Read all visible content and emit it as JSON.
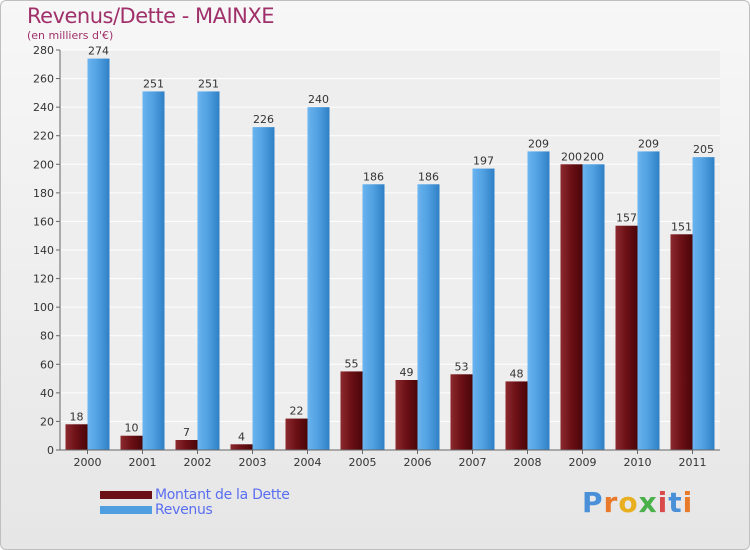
{
  "chart_data": {
    "type": "bar",
    "title": "Revenus/Dette - MAINXE",
    "subtitle": "(en milliers d'€)",
    "categories": [
      "2000",
      "2001",
      "2002",
      "2003",
      "2004",
      "2005",
      "2006",
      "2007",
      "2008",
      "2009",
      "2010",
      "2011"
    ],
    "series": [
      {
        "name": "Montant de la Dette",
        "color": "#6b1016",
        "values": [
          18,
          10,
          7,
          4,
          22,
          55,
          49,
          53,
          48,
          200,
          157,
          151
        ]
      },
      {
        "name": "Revenus",
        "color": "#4f9fe0",
        "values": [
          274,
          251,
          251,
          226,
          240,
          186,
          186,
          197,
          209,
          200,
          209,
          205
        ]
      }
    ],
    "ylim": [
      0,
      280
    ],
    "yticks": [
      0,
      20,
      40,
      60,
      80,
      100,
      120,
      140,
      160,
      180,
      200,
      220,
      240,
      260,
      280
    ],
    "grid": true,
    "legend_position": "bottom-left"
  },
  "logo": {
    "letters": [
      "P",
      "r",
      "o",
      "x",
      "i",
      "t",
      "i"
    ]
  }
}
